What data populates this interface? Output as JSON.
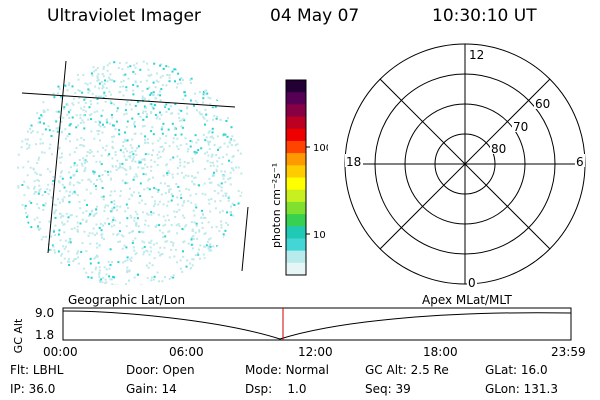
{
  "header": {
    "title": "Ultraviolet Imager",
    "date": "04 May 07",
    "time": "10:30:10 UT"
  },
  "colorbar": {
    "label": "photon cm⁻²s⁻¹",
    "ticks": [
      {
        "label": "100",
        "value": 100
      },
      {
        "label": "10",
        "value": 10
      }
    ],
    "colors": [
      "#e6f5f5",
      "#b8ebeb",
      "#44d6d6",
      "#1fc9b4",
      "#38d050",
      "#7fe030",
      "#c8f020",
      "#ffff00",
      "#ffcc00",
      "#ff9900",
      "#ff4400",
      "#ee0000",
      "#bb0022",
      "#880044",
      "#550055",
      "#220033"
    ]
  },
  "polar": {
    "labels": {
      "top": "12",
      "bottom": "0",
      "left": "18",
      "right": "6",
      "lat60": "60",
      "lat70": "70",
      "lat80": "80"
    }
  },
  "timeline": {
    "geo_label": "Geographic Lat/Lon",
    "apex_label": "Apex MLat/MLT",
    "axis_title": "GC Alt",
    "y_ticks": [
      "9.0",
      "1.8"
    ],
    "x_ticks": [
      "00:00",
      "06:00",
      "12:00",
      "18:00",
      "23:59"
    ],
    "current_time_label": "10:30"
  },
  "footer": {
    "row1": [
      {
        "key": "Flt:",
        "value": "LBHL"
      },
      {
        "key": "Door:",
        "value": "Open"
      },
      {
        "key": "Mode:",
        "value": "Normal"
      },
      {
        "key": "GC Alt:",
        "value": "2.5 Re"
      },
      {
        "key": "GLat:",
        "value": "16.0"
      }
    ],
    "row2": [
      {
        "key": "IP:",
        "value": "36.0"
      },
      {
        "key": "Gain:",
        "value": "14"
      },
      {
        "key": "Dsp:",
        "value": "1.0"
      },
      {
        "key": "Seq:",
        "value": "39"
      },
      {
        "key": "GLon:",
        "value": "131.3"
      }
    ]
  },
  "colors": {
    "speckle": "#27d3d3",
    "speckle_light": "#bfe9e9",
    "current_time_marker": "#cc0000"
  }
}
